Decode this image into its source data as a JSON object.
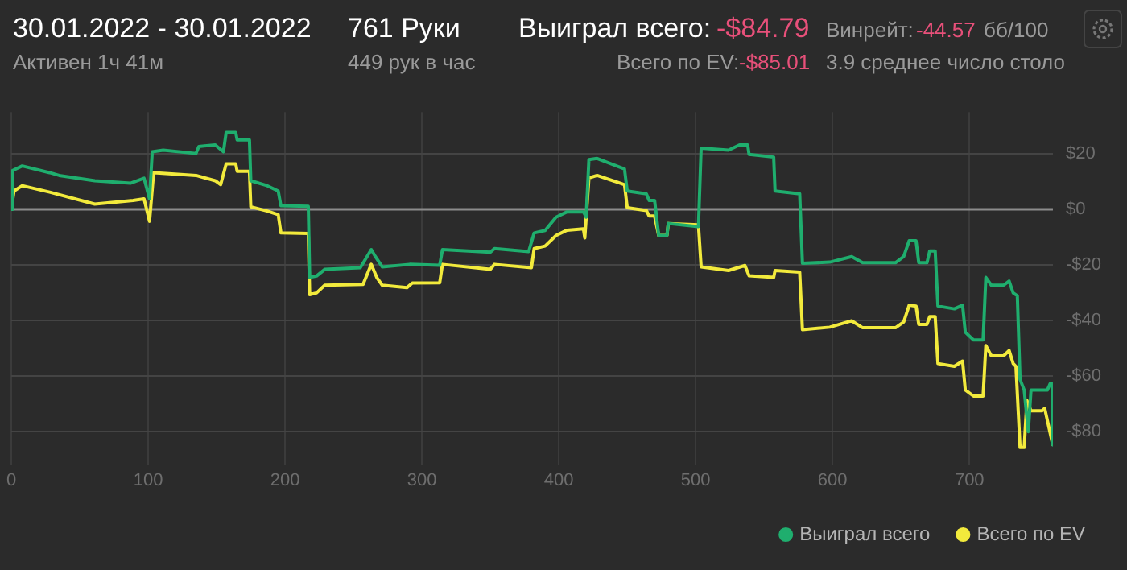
{
  "chart_data": {
    "type": "line",
    "title": "30.01.2022 - 30.01.2022",
    "subtitle": "Активен 1ч 41м",
    "annotations": [
      "761 Руки",
      "449 рук в час",
      "Выиграл всего:",
      "-$84.79",
      "Всего по EV:",
      "-$85.01",
      "Винрейт:",
      "-44.57",
      "бб/100",
      "3.9 среднее число столо"
    ],
    "series": [
      {
        "name": "Выиграл всего",
        "color": "#1fae6e",
        "x": [
          0,
          1,
          8,
          28,
          35,
          61,
          87,
          97,
          101,
          103,
          111,
          135,
          137,
          149,
          155,
          157,
          164,
          165,
          174,
          175,
          187,
          195,
          197,
          217,
          218,
          223,
          229,
          255,
          263,
          266,
          271,
          291,
          313,
          315,
          350,
          353,
          378,
          382,
          390,
          398,
          406,
          418,
          420,
          422,
          428,
          448,
          450,
          464,
          466,
          470,
          473,
          479,
          480,
          502,
          504,
          524,
          532,
          538,
          539,
          557,
          558,
          576,
          578,
          598,
          614,
          622,
          646,
          652,
          656,
          661,
          663,
          669,
          671,
          675,
          677,
          689,
          695,
          697,
          703,
          710,
          712,
          716,
          725,
          729,
          732,
          735,
          737,
          740,
          743,
          745,
          757,
          759,
          761,
          761
        ],
        "values": [
          0,
          14,
          15.6,
          13.2,
          12.2,
          10.3,
          9.4,
          11.2,
          3.8,
          20.7,
          21.3,
          20.1,
          22.6,
          23.2,
          20.7,
          27.7,
          27.7,
          25,
          25,
          10.3,
          8.5,
          6.6,
          1.3,
          1.1,
          -24.5,
          -24,
          -21.6,
          -21,
          -14.5,
          -17,
          -20.7,
          -19.8,
          -20.1,
          -14.5,
          -15.4,
          -14.1,
          -15.2,
          -8.5,
          -7.6,
          -2.8,
          -0.9,
          -0.9,
          -2.8,
          17.9,
          18.3,
          14.5,
          6.6,
          5.6,
          3.2,
          3.2,
          -9.4,
          -9.4,
          -5.1,
          -6.2,
          22,
          21.3,
          23.2,
          23.2,
          19.8,
          18.8,
          6.6,
          5.6,
          -19.4,
          -19,
          -17,
          -19.2,
          -19.2,
          -17,
          -11.3,
          -11.3,
          -19.2,
          -19.2,
          -15,
          -15,
          -34.8,
          -35.8,
          -34.5,
          -44.2,
          -47,
          -47,
          -24.5,
          -27.3,
          -27.3,
          -25.8,
          -30.1,
          -31.1,
          -61.2,
          -65,
          -80,
          -65,
          -65,
          -62.7,
          -62.7,
          -84.8
        ]
      },
      {
        "name": "Всего по EV",
        "color": "#f2ea3c",
        "x": [
          0,
          2,
          8,
          28,
          61,
          89,
          97,
          101,
          104,
          135,
          149,
          153,
          157,
          164,
          165,
          174,
          175,
          187,
          195,
          197,
          217,
          218,
          223,
          229,
          257,
          263,
          267,
          271,
          289,
          293,
          313,
          315,
          350,
          353,
          380,
          382,
          390,
          398,
          406,
          418,
          419,
          422,
          428,
          448,
          450,
          464,
          466,
          470,
          473,
          479,
          480,
          502,
          504,
          524,
          536,
          539,
          557,
          558,
          576,
          578,
          598,
          614,
          622,
          646,
          652,
          656,
          661,
          663,
          669,
          671,
          675,
          677,
          689,
          695,
          697,
          703,
          710,
          712,
          716,
          725,
          729,
          732,
          734,
          737,
          740,
          742,
          745,
          753,
          755,
          761
        ],
        "values": [
          0,
          6.6,
          8.5,
          6.2,
          1.9,
          3.2,
          3.8,
          -4.3,
          13.2,
          12.2,
          10.3,
          8.9,
          16.4,
          16.4,
          13.7,
          13.7,
          0.9,
          -0.6,
          -1.9,
          -8.5,
          -8.7,
          -30.7,
          -30.1,
          -27.3,
          -27,
          -19.8,
          -24.5,
          -27.3,
          -28.2,
          -26.5,
          -26.4,
          -19.8,
          -21.6,
          -19.8,
          -21,
          -14.1,
          -13.2,
          -9.4,
          -7.5,
          -7,
          -10.3,
          11.3,
          12.2,
          8.9,
          0.6,
          -0.4,
          -2.4,
          -2.4,
          -9.4,
          -9.4,
          -5.1,
          -5.6,
          -20.7,
          -22,
          -20.2,
          -23.9,
          -24.5,
          -22,
          -22.6,
          -43.3,
          -42.4,
          -40.1,
          -42.6,
          -42.6,
          -40.5,
          -34.5,
          -34.8,
          -41.4,
          -41.4,
          -38.6,
          -38.6,
          -55.5,
          -56.5,
          -54.6,
          -65,
          -67.2,
          -67.2,
          -49,
          -52.7,
          -52.7,
          -50.8,
          -55.5,
          -56.5,
          -85.7,
          -85.7,
          -68.8,
          -72.5,
          -72.5,
          -71.6,
          -85.0
        ]
      }
    ],
    "xlim": [
      0,
      761
    ],
    "xticks": [
      0,
      100,
      200,
      300,
      400,
      500,
      600,
      700
    ],
    "ylim": [
      -92,
      35
    ],
    "yticks": [
      {
        "value": 20,
        "label": "$20"
      },
      {
        "value": 0,
        "label": "$0"
      },
      {
        "value": -20,
        "label": "-$20"
      },
      {
        "value": -40,
        "label": "-$40"
      },
      {
        "value": -60,
        "label": "-$60"
      },
      {
        "value": -80,
        "label": "-$80"
      }
    ],
    "ref_lines": [
      {
        "axis": "y",
        "value": 0,
        "color": "#8c8c8c"
      }
    ],
    "grid": true,
    "legend": "bottom right",
    "marker": "none",
    "line_style": "solid"
  }
}
